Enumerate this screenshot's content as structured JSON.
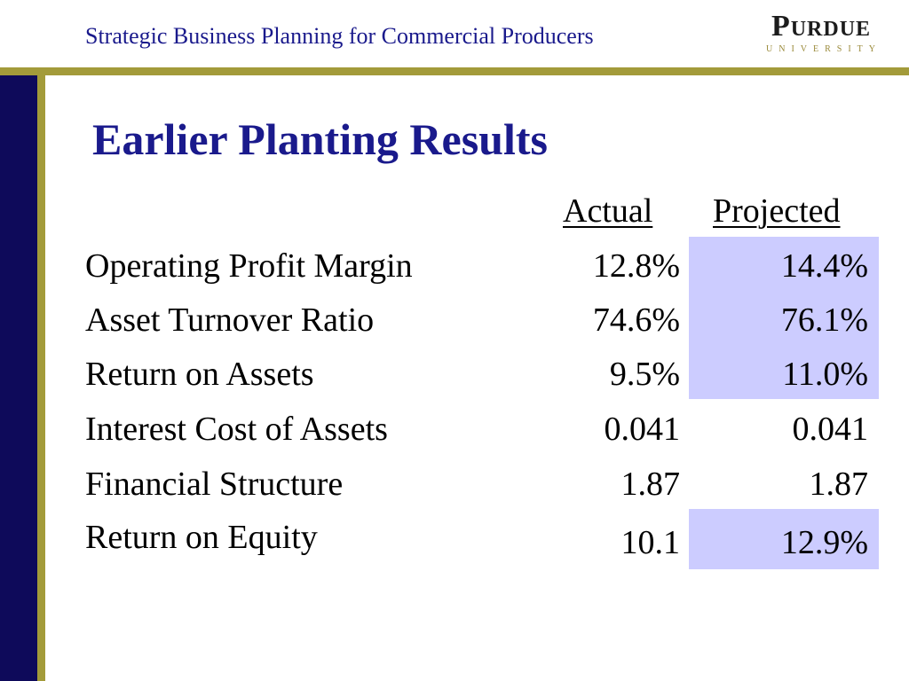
{
  "header": {
    "title": "Strategic Business Planning for Commercial Producers",
    "logo_word": "Purdue",
    "logo_sub": "UNIVERSITY"
  },
  "slide": {
    "title": "Earlier Planting Results"
  },
  "table": {
    "columns": [
      "Actual",
      "Projected"
    ],
    "rows": [
      {
        "label": "Operating Profit Margin",
        "actual": "12.8%",
        "projected": "14.4%"
      },
      {
        "label": "Asset Turnover Ratio",
        "actual": "74.6%",
        "projected": "76.1%"
      },
      {
        "label": "Return on Assets",
        "actual": "9.5%",
        "projected": "11.0%"
      },
      {
        "label": "Interest Cost of Assets",
        "actual": "0.041",
        "projected": "0.041"
      },
      {
        "label": "Financial Structure",
        "actual": "1.87",
        "projected": "1.87"
      },
      {
        "label": "Return on Equity",
        "actual": "10.1",
        "projected": "12.9%"
      }
    ]
  },
  "colors": {
    "title_blue": "#1a1a8c",
    "gold_rule": "#a39b3a",
    "navy_bar": "#0e0a5a",
    "highlight": "#ccccff"
  }
}
